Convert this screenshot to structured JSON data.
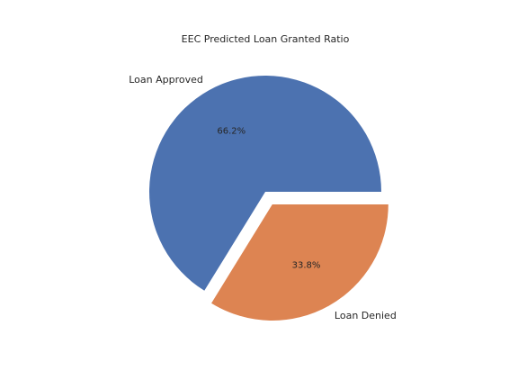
{
  "chart_data": {
    "type": "pie",
    "title": "EEC Predicted Loan Granted Ratio",
    "categories": [
      "Loan Approved",
      "Loan Denied"
    ],
    "values": [
      66.2,
      33.8
    ],
    "percent_labels": [
      "66.2%",
      "33.8%"
    ],
    "colors": [
      "#4c72b0",
      "#dd8452"
    ],
    "exploded": [
      false,
      true
    ],
    "start_angle_deg": 0,
    "direction": "counterclockwise",
    "legend": "none"
  }
}
